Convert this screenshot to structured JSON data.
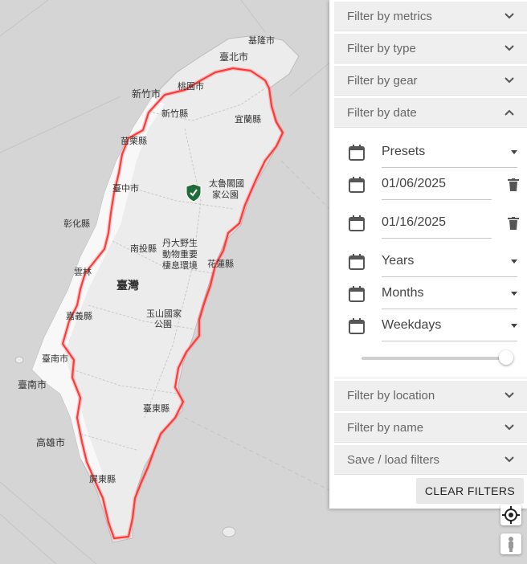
{
  "map": {
    "labels": {
      "keelung": "基隆市",
      "taipei": "臺北市",
      "taoyuan": "桃園市",
      "hsinchu_city": "新竹市",
      "hsinchu_county": "新竹縣",
      "yilan": "宜蘭縣",
      "miaoli": "苗栗縣",
      "taichung": "臺中市",
      "taroko_1": "太魯閣國",
      "taroko_2": "家公園",
      "changhua": "彰化縣",
      "nantou": "南投縣",
      "danda_1": "丹大野生",
      "danda_2": "動物重要",
      "danda_3": "棲息環境",
      "hualien": "花蓮縣",
      "yunlin": "雲林",
      "taiwan": "臺灣",
      "chiayi": "嘉義縣",
      "yushan_1": "玉山國家",
      "yushan_2": "公園",
      "tainan_short": "臺南市",
      "tainan": "臺南市",
      "taitung": "臺東縣",
      "kaohsiung": "高雄市",
      "pingtung": "屏東縣"
    },
    "colors": {
      "route": "#ff1e1e",
      "land": "#e9e9e9",
      "sea": "#d4d4d4",
      "badge": "#1f6b3a"
    },
    "icons": {
      "badge": "shield-check-icon",
      "locate": "crosshair-icon",
      "streetview": "pegman-icon"
    }
  },
  "filters": {
    "metrics": "Filter by metrics",
    "type": "Filter by type",
    "gear": "Filter by gear",
    "date": "Filter by date",
    "location": "Filter by location",
    "name": "Filter by name",
    "save_load": "Save / load filters",
    "clear": "CLEAR FILTERS"
  },
  "date_filter": {
    "presets": "Presets",
    "start": "01/06/2025",
    "end": "01/16/2025",
    "years": "Years",
    "months": "Months",
    "weekdays": "Weekdays",
    "slider_fraction": 1.0
  }
}
